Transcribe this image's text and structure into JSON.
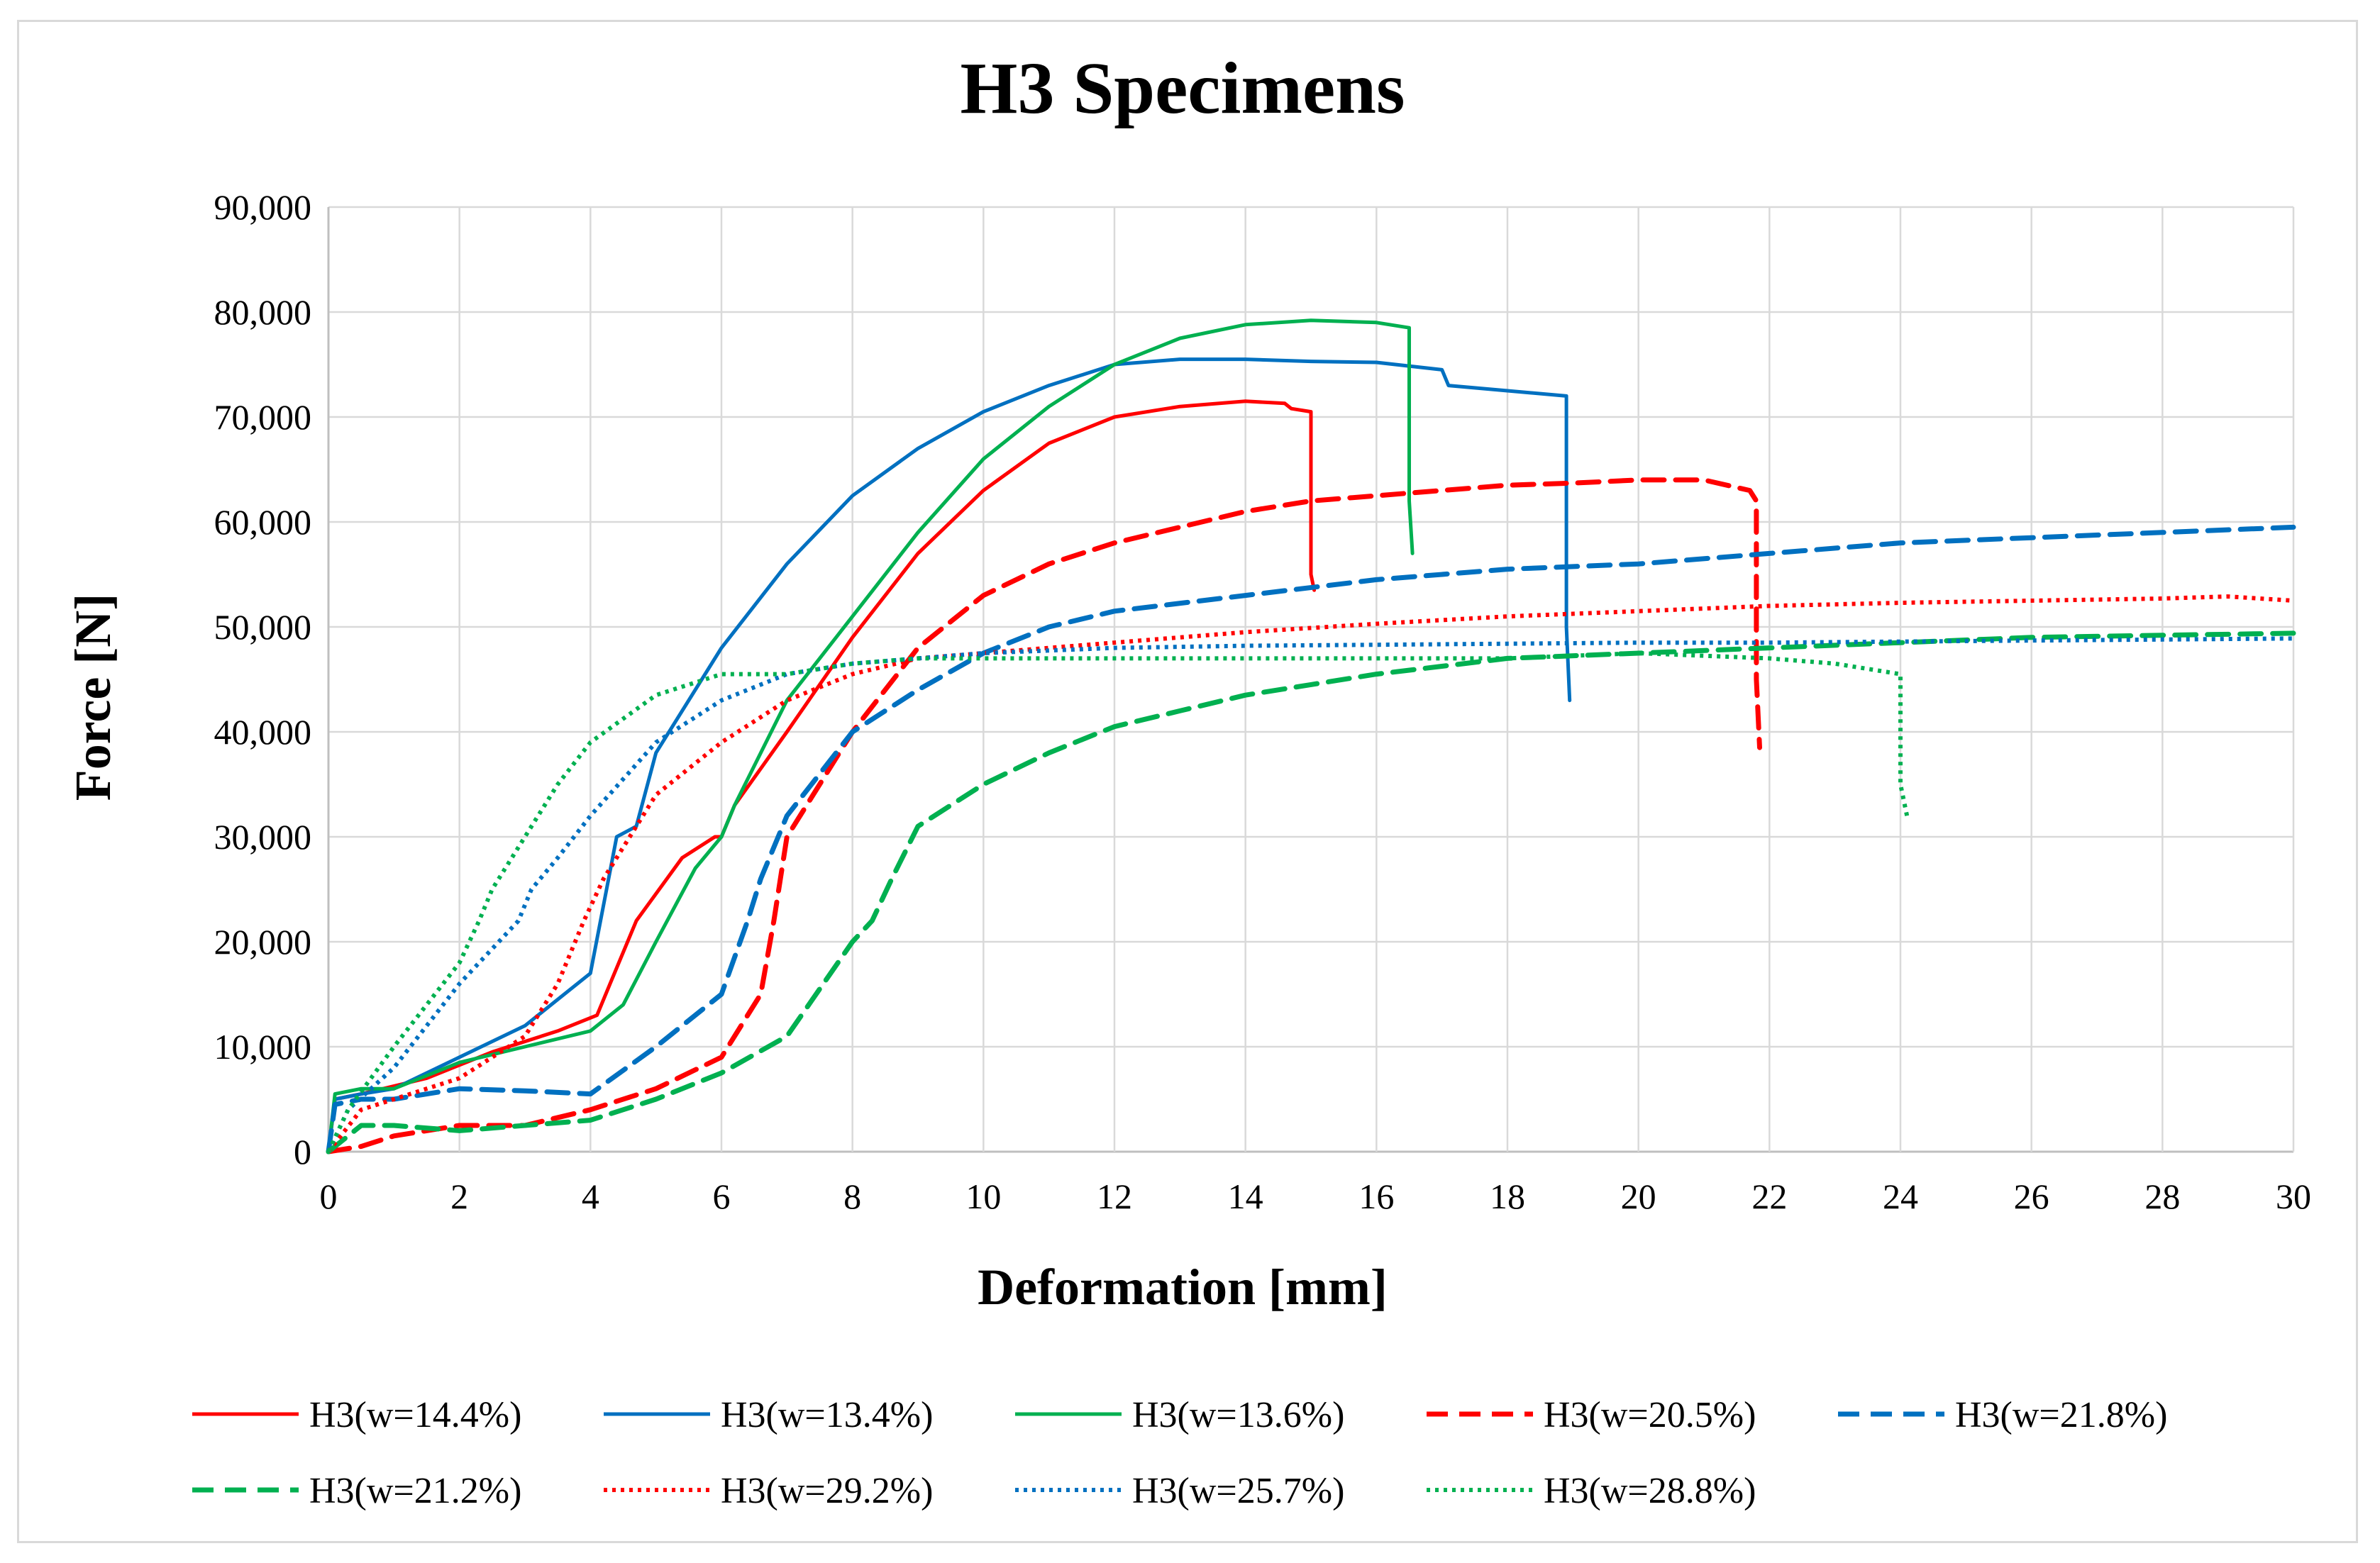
{
  "chart_data": {
    "type": "line",
    "title": "H3 Specimens",
    "xlabel": "Deformation [mm]",
    "ylabel": "Force [N]",
    "xlim": [
      0,
      30
    ],
    "ylim": [
      0,
      90000
    ],
    "xticks": [
      "0",
      "2",
      "4",
      "6",
      "8",
      "10",
      "12",
      "14",
      "16",
      "18",
      "20",
      "22",
      "24",
      "26",
      "28",
      "30"
    ],
    "yticks": [
      "0",
      "10,000",
      "20,000",
      "30,000",
      "40,000",
      "50,000",
      "60,000",
      "70,000",
      "80,000",
      "90,000"
    ],
    "grid": true,
    "legend_position": "bottom",
    "series": [
      {
        "name": "H3(w=14.4%)",
        "color": "#ff0000",
        "style": "solid",
        "x": [
          0,
          0.1,
          0.5,
          1.5,
          2.5,
          3.5,
          4.1,
          4.3,
          4.7,
          5.4,
          5.9,
          6.0,
          6.2,
          7.0,
          8.0,
          9.0,
          10.0,
          11.0,
          12.0,
          13.0,
          14.0,
          14.6,
          14.7,
          15.0,
          15.0,
          15.05
        ],
        "y": [
          0,
          5000,
          5500,
          7000,
          9500,
          11500,
          13000,
          16000,
          22000,
          28000,
          30000,
          30000,
          33000,
          40000,
          49000,
          57000,
          63000,
          67500,
          70000,
          71000,
          71500,
          71300,
          70800,
          70500,
          55000,
          53500
        ]
      },
      {
        "name": "H3(w=13.4%)",
        "color": "#0070c0",
        "style": "solid",
        "x": [
          0,
          0.1,
          0.5,
          1.0,
          2.0,
          3.0,
          4.0,
          4.4,
          4.7,
          5.0,
          6.0,
          7.0,
          8.0,
          9.0,
          10.0,
          11.0,
          12.0,
          13.0,
          14.0,
          15.0,
          16.0,
          17.0,
          17.1,
          18.0,
          18.9,
          18.9,
          18.95
        ],
        "y": [
          0,
          5000,
          5500,
          6000,
          9000,
          12000,
          17000,
          30000,
          31000,
          38000,
          48000,
          56000,
          62500,
          67000,
          70500,
          73000,
          75000,
          75500,
          75500,
          75300,
          75200,
          74500,
          73000,
          72500,
          72000,
          50000,
          43000
        ]
      },
      {
        "name": "H3(w=13.6%)",
        "color": "#00b050",
        "style": "solid",
        "x": [
          0,
          0.1,
          0.5,
          1.0,
          2.0,
          3.0,
          4.0,
          4.5,
          5.0,
          5.6,
          6.0,
          6.2,
          7.0,
          8.0,
          9.0,
          10.0,
          11.0,
          12.0,
          13.0,
          14.0,
          15.0,
          16.0,
          16.5,
          16.5,
          16.55
        ],
        "y": [
          0,
          5500,
          6000,
          6000,
          8500,
          10000,
          11500,
          14000,
          20000,
          27000,
          30000,
          33000,
          43000,
          51000,
          59000,
          66000,
          71000,
          75000,
          77500,
          78800,
          79200,
          79000,
          78500,
          62000,
          57000
        ]
      },
      {
        "name": "H3(w=20.5%)",
        "color": "#ff0000",
        "style": "dash",
        "x": [
          0,
          0.5,
          1.0,
          2.0,
          3.0,
          4.0,
          5.0,
          6.0,
          6.6,
          6.8,
          7.0,
          8.0,
          9.0,
          10.0,
          11.0,
          12.0,
          13.0,
          14.0,
          15.0,
          16.0,
          17.0,
          18.0,
          19.0,
          20.0,
          21.0,
          21.7,
          21.8,
          21.8,
          21.85
        ],
        "y": [
          0,
          500,
          1500,
          2500,
          2500,
          4000,
          6000,
          9000,
          15000,
          22000,
          30000,
          40000,
          48000,
          53000,
          56000,
          58000,
          59500,
          61000,
          62000,
          62500,
          63000,
          63500,
          63700,
          64000,
          64000,
          63000,
          62000,
          45000,
          38500
        ]
      },
      {
        "name": "H3(w=21.8%)",
        "color": "#0070c0",
        "style": "dash",
        "x": [
          0,
          0.1,
          0.5,
          1.0,
          2.0,
          3.0,
          4.0,
          5.0,
          6.0,
          6.4,
          6.6,
          7.0,
          8.0,
          9.0,
          10.0,
          11.0,
          12.0,
          14.0,
          16.0,
          18.0,
          20.0,
          22.0,
          24.0,
          26.0,
          28.0,
          30.0
        ],
        "y": [
          0,
          4500,
          5000,
          5000,
          6000,
          5800,
          5500,
          10000,
          15000,
          22000,
          26000,
          32000,
          40000,
          44000,
          47500,
          50000,
          51500,
          53000,
          54500,
          55500,
          56000,
          57000,
          58000,
          58500,
          59000,
          59500
        ]
      },
      {
        "name": "H3(w=21.2%)",
        "color": "#00b050",
        "style": "dash",
        "x": [
          0,
          0.5,
          1.0,
          2.0,
          3.0,
          4.0,
          5.0,
          6.0,
          7.0,
          8.0,
          8.3,
          8.6,
          9.0,
          10.0,
          11.0,
          12.0,
          13.0,
          14.0,
          15.0,
          16.0,
          18.0,
          20.0,
          22.0,
          24.0,
          26.0,
          28.0,
          30.0
        ],
        "y": [
          0,
          2500,
          2500,
          2000,
          2500,
          3000,
          5000,
          7500,
          11000,
          20000,
          22000,
          26000,
          31000,
          35000,
          38000,
          40500,
          42000,
          43500,
          44500,
          45500,
          47000,
          47500,
          48000,
          48500,
          49000,
          49200,
          49400
        ]
      },
      {
        "name": "H3(w=29.2%)",
        "color": "#ff0000",
        "style": "dot",
        "x": [
          0,
          0.5,
          1.0,
          2.0,
          3.0,
          3.5,
          3.9,
          4.2,
          5.0,
          6.0,
          7.0,
          8.0,
          9.0,
          10.0,
          12.0,
          14.0,
          16.0,
          18.0,
          20.0,
          22.0,
          24.0,
          26.0,
          28.0,
          29.0,
          30.0
        ],
        "y": [
          0,
          4000,
          5000,
          7000,
          11000,
          16000,
          22000,
          26000,
          34000,
          39000,
          43000,
          45500,
          47000,
          47500,
          48500,
          49500,
          50300,
          51000,
          51500,
          52000,
          52300,
          52500,
          52700,
          52900,
          52500
        ]
      },
      {
        "name": "H3(w=25.7%)",
        "color": "#0070c0",
        "style": "dot",
        "x": [
          0,
          0.3,
          1.0,
          2.0,
          2.9,
          3.1,
          3.5,
          4.0,
          5.0,
          6.0,
          7.0,
          8.0,
          9.0,
          10.0,
          12.0,
          14.0,
          16.0,
          18.0,
          20.0,
          22.0,
          24.0,
          26.0,
          28.0,
          30.0
        ],
        "y": [
          0,
          4000,
          8000,
          16000,
          22000,
          25000,
          28000,
          32000,
          39000,
          43000,
          45500,
          46500,
          47000,
          47500,
          48000,
          48200,
          48300,
          48400,
          48500,
          48500,
          48600,
          48700,
          48800,
          48900
        ]
      },
      {
        "name": "H3(w=28.8%)",
        "color": "#00b050",
        "style": "dot",
        "x": [
          0,
          0.3,
          1.0,
          1.5,
          2.0,
          2.3,
          2.5,
          3.0,
          3.5,
          4.0,
          5.0,
          6.0,
          7.0,
          8.0,
          9.0,
          10.0,
          12.0,
          14.0,
          16.0,
          18.0,
          20.0,
          22.0,
          23.0,
          24.0,
          24.0,
          24.1
        ],
        "y": [
          0,
          4000,
          10000,
          14000,
          18000,
          22000,
          25000,
          30000,
          35000,
          39000,
          43500,
          45500,
          45500,
          46500,
          47000,
          47000,
          47000,
          47000,
          47000,
          47000,
          47500,
          47000,
          46500,
          45500,
          35000,
          32000
        ]
      }
    ]
  }
}
